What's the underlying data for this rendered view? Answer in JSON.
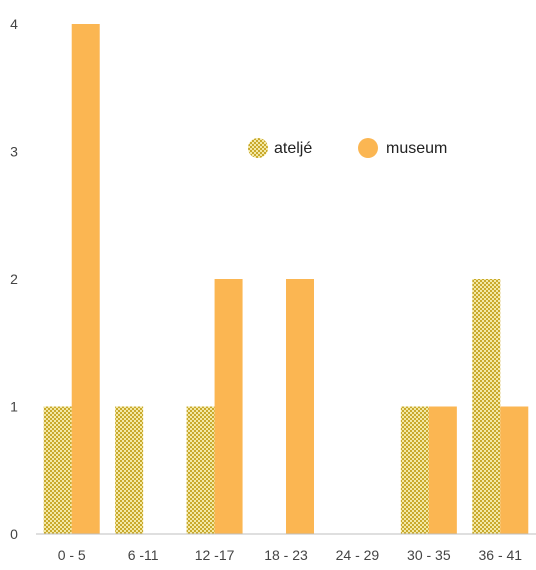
{
  "chart_data": {
    "type": "bar",
    "title": "",
    "xlabel": "",
    "ylabel": "",
    "categories": [
      "0 - 5",
      "6 -11",
      "12 -17",
      "18 - 23",
      "24 - 29",
      "30 - 35",
      "36 - 41"
    ],
    "y_ticks": [
      "0",
      "1",
      "2",
      "3",
      "4"
    ],
    "ylim": [
      0,
      4
    ],
    "grid": false,
    "legend_position": "upper-right inside plot",
    "series": [
      {
        "name": "ateljé",
        "values": [
          1,
          1,
          1,
          0,
          0,
          1,
          2
        ],
        "color": "#e6c23a",
        "pattern": "checkered"
      },
      {
        "name": "museum",
        "values": [
          4,
          0,
          2,
          2,
          0,
          1,
          1
        ],
        "color": "#fbb652",
        "pattern": "solid"
      }
    ]
  }
}
